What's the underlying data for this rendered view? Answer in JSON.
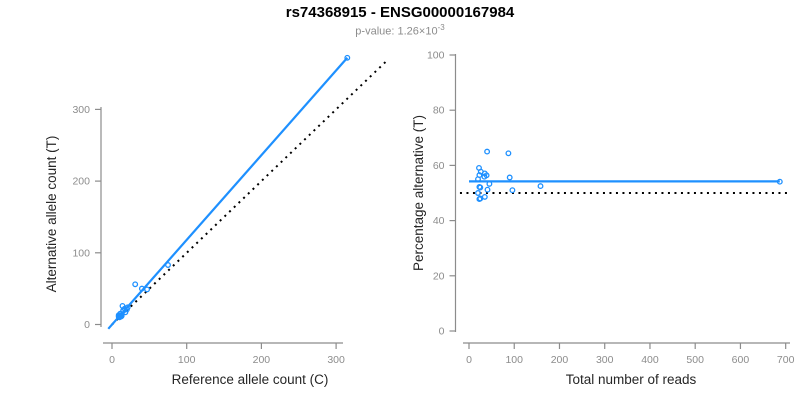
{
  "header": {
    "title": "rs74368915 - ENSG00000167984",
    "subtitle_text": "p-value: 1.26×10",
    "subtitle_exponent": "-3"
  },
  "colors": {
    "accent_blue": "#1E90FF",
    "reference_black": "#000000",
    "axis_gray": "#8C8C8C",
    "tick_label_gray": "#8C8C8C",
    "label_dark": "#262626",
    "title_black": "#000000",
    "subtitle_gray": "#8C8C8C",
    "background": "#FFFFFF"
  },
  "chart_data": [
    {
      "type": "scatter",
      "panel": "allele-counts",
      "xlabel": "Reference allele count (C)",
      "ylabel": "Alternative allele count (T)",
      "x_ticks": [
        0,
        100,
        200,
        300
      ],
      "y_ticks": [
        0,
        100,
        200,
        300
      ],
      "xlim": [
        0,
        370
      ],
      "ylim": [
        0,
        380
      ],
      "grid": false,
      "legend": "none",
      "points": [
        [
          9,
          11
        ],
        [
          9,
          13
        ],
        [
          10,
          10
        ],
        [
          10,
          13
        ],
        [
          11,
          12
        ],
        [
          11,
          15
        ],
        [
          12,
          13
        ],
        [
          13,
          12
        ],
        [
          12,
          11
        ],
        [
          15,
          19
        ],
        [
          15,
          20
        ],
        [
          18,
          17
        ],
        [
          17,
          22
        ],
        [
          14,
          26
        ],
        [
          20,
          21
        ],
        [
          21,
          24
        ],
        [
          31,
          56
        ],
        [
          40,
          50
        ],
        [
          47,
          49
        ],
        [
          75,
          83
        ],
        [
          315,
          372
        ]
      ],
      "fit_line": {
        "style": "solid",
        "from": [
          -5,
          -6
        ],
        "to": [
          315,
          372
        ],
        "slope_approx": 1.19
      },
      "reference_line": {
        "style": "dotted",
        "from": [
          0,
          0
        ],
        "to": [
          370,
          370
        ],
        "meaning": "identity y=x"
      }
    },
    {
      "type": "scatter",
      "panel": "percentage-vs-depth",
      "xlabel": "Total number of reads",
      "ylabel": "Percentage alternative (T)",
      "x_ticks": [
        0,
        100,
        200,
        300,
        400,
        500,
        600,
        700
      ],
      "y_ticks": [
        0,
        20,
        40,
        60,
        80,
        100
      ],
      "xlim": [
        0,
        710
      ],
      "ylim": [
        0,
        100
      ],
      "grid": false,
      "legend": "none",
      "points": [
        [
          20,
          55.0
        ],
        [
          22,
          59.1
        ],
        [
          20,
          50.0
        ],
        [
          23,
          56.5
        ],
        [
          23,
          52.2
        ],
        [
          26,
          57.7
        ],
        [
          25,
          52.0
        ],
        [
          25,
          48.0
        ],
        [
          23,
          47.8
        ],
        [
          34,
          55.9
        ],
        [
          35,
          57.1
        ],
        [
          35,
          48.6
        ],
        [
          39,
          56.4
        ],
        [
          40,
          65.0
        ],
        [
          41,
          51.2
        ],
        [
          45,
          53.3
        ],
        [
          87,
          64.4
        ],
        [
          90,
          55.6
        ],
        [
          96,
          51.0
        ],
        [
          158,
          52.5
        ],
        [
          687,
          54.1
        ]
      ],
      "fit_line": {
        "style": "solid",
        "y": 54.2,
        "x_from": 0,
        "x_to": 687
      },
      "reference_line": {
        "style": "dotted",
        "y": 50,
        "x_from": -20,
        "x_to": 712,
        "meaning": "null 50%"
      }
    }
  ]
}
